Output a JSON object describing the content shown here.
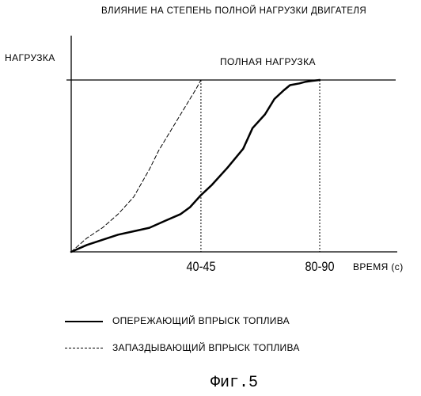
{
  "chart_data": {
    "type": "line",
    "title": "ВЛИЯНИЕ НА СТЕПЕНЬ ПОЛНОЙ НАГРУЗКИ ДВИГАТЕЛЯ",
    "ylabel": "НАГРУЗКА",
    "xlabel": "ВРЕМЯ (с)",
    "xlim": [
      0,
      100
    ],
    "ylim": [
      0,
      100
    ],
    "reference_line": {
      "label": "ПОЛНАЯ НАГРУЗКА",
      "y": 100
    },
    "x_ticks": [
      {
        "label": "40-45",
        "value": 41.5
      },
      {
        "label": "80-90",
        "value": 79.5
      }
    ],
    "grid": false,
    "legend_position": "bottom",
    "series": [
      {
        "name": "ОПЕРЕЖАЮЩИЙ ВПРЫСК ТОПЛИВА",
        "style": "solid",
        "x": [
          0,
          5,
          10,
          15,
          20,
          25,
          30,
          35,
          38,
          41.5,
          45,
          50,
          55,
          58,
          62,
          65,
          68,
          70,
          73,
          75,
          77,
          79.5
        ],
        "y": [
          0,
          4,
          7,
          10,
          12,
          14,
          18,
          22,
          26,
          33,
          39,
          49,
          60,
          72,
          80,
          89,
          94,
          97,
          98,
          99,
          99.5,
          100
        ]
      },
      {
        "name": "ЗАПАЗДЫВАЮЩИЙ ВПРЫСК ТОПЛИВА",
        "style": "dashed",
        "x": [
          0,
          5,
          10,
          15,
          20,
          25,
          28,
          32,
          36,
          38,
          40,
          41.5
        ],
        "y": [
          0,
          8,
          14,
          22,
          32,
          48,
          59,
          71,
          83,
          89,
          95,
          100
        ]
      }
    ],
    "caption": "Фиг.5"
  }
}
